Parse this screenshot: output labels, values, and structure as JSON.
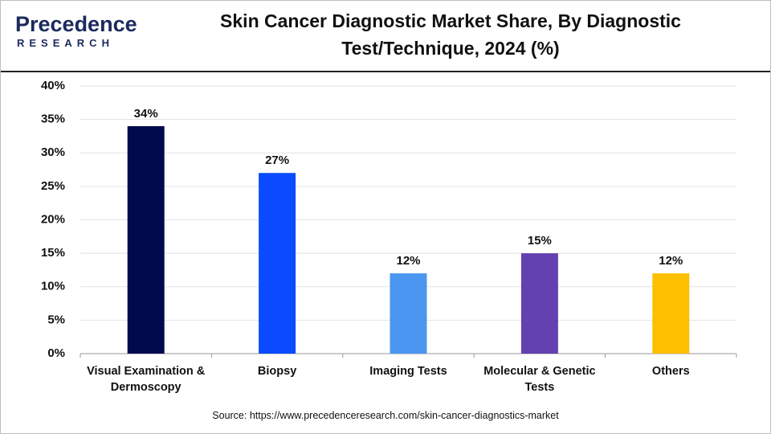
{
  "logo": {
    "name": "Precedence",
    "subtitle": "RESEARCH"
  },
  "chart_data": {
    "type": "bar",
    "title": "Skin Cancer Diagnostic Market Share, By Diagnostic Test/Technique, 2024 (%)",
    "categories": [
      "Visual Examination & Dermoscopy",
      "Biopsy",
      "Imaging Tests",
      "Molecular & Genetic Tests",
      "Others"
    ],
    "values": [
      34,
      27,
      12,
      15,
      12
    ],
    "value_labels": [
      "34%",
      "27%",
      "12%",
      "15%",
      "12%"
    ],
    "colors": [
      "#020a4e",
      "#0a4bff",
      "#4a96f0",
      "#6441b0",
      "#fcc000"
    ],
    "ylim": [
      0,
      40
    ],
    "yticks": [
      {
        "value": 0,
        "label": "0%"
      },
      {
        "value": 5,
        "label": "5%"
      },
      {
        "value": 10,
        "label": "10%"
      },
      {
        "value": 15,
        "label": "15%"
      },
      {
        "value": 20,
        "label": "20%"
      },
      {
        "value": 25,
        "label": "25%"
      },
      {
        "value": 30,
        "label": "30%"
      },
      {
        "value": 35,
        "label": "35%"
      },
      {
        "value": 40,
        "label": "40%"
      }
    ],
    "grid": true,
    "source": "Source: https://www.precedenceresearch.com/skin-cancer-diagnostics-market"
  }
}
